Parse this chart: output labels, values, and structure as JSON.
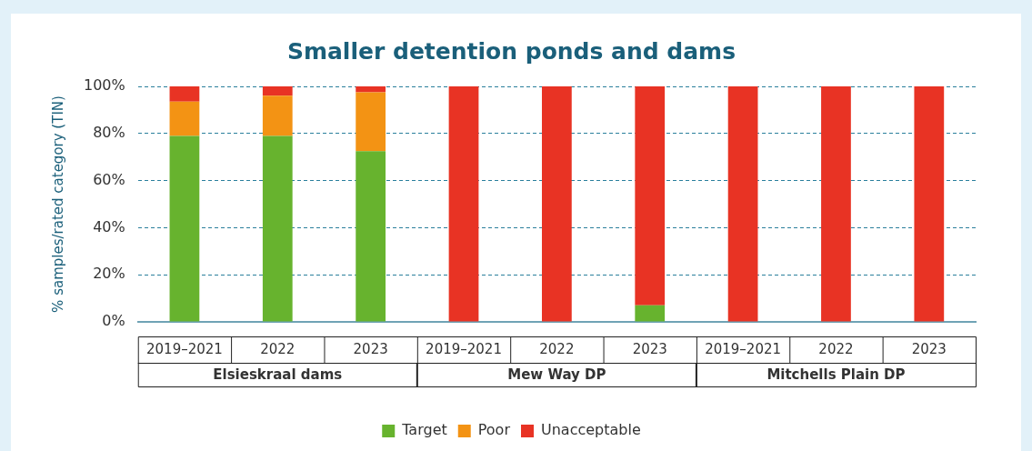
{
  "chart_data": {
    "type": "bar",
    "title": "Smaller detention ponds and dams",
    "ylabel": "% samples/rated category (TIN)",
    "categories": [
      "2019–2021",
      "2022",
      "2023",
      "2019–2021",
      "2022",
      "2023",
      "2019–2021",
      "2022",
      "2023"
    ],
    "annotations": [
      "Elsieskraal dams",
      "Mew Way DP",
      "Mitchells Plain DP"
    ],
    "stacked": true,
    "series": [
      {
        "name": "Target",
        "color": "#67b32e",
        "values": [
          79,
          79,
          72.5,
          0,
          0,
          7,
          0,
          0,
          0
        ]
      },
      {
        "name": "Poor",
        "color": "#f39314",
        "values": [
          14.5,
          17,
          25,
          0,
          0,
          0,
          0,
          0,
          0
        ]
      },
      {
        "name": "Unacceptable",
        "color": "#e83324",
        "values": [
          6.5,
          4,
          2.5,
          100,
          100,
          93,
          100,
          100,
          100
        ]
      }
    ],
    "ylim": [
      0,
      100
    ],
    "yticks": [
      {
        "value": 0,
        "label": "0%"
      },
      {
        "value": 20,
        "label": "20%"
      },
      {
        "value": 40,
        "label": "40%"
      },
      {
        "value": 60,
        "label": "60%"
      },
      {
        "value": 80,
        "label": "80%"
      },
      {
        "value": 100,
        "label": "100%"
      }
    ],
    "grid": "y",
    "legend": "bottom"
  }
}
